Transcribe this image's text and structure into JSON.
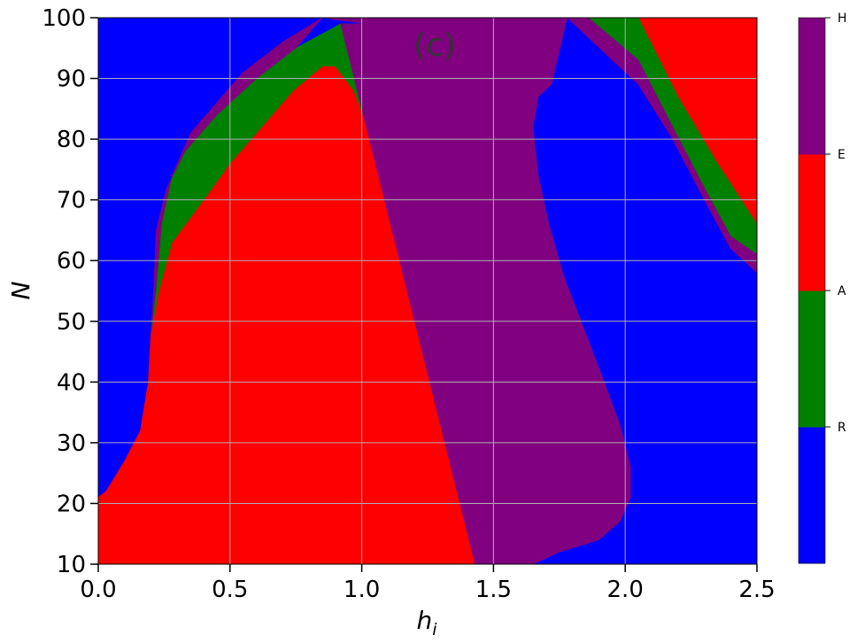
{
  "chart_data": {
    "type": "heatmap",
    "panel_label": "(c)",
    "xlabel": "h",
    "xlabel_sub": "i",
    "ylabel": "N",
    "xlim": [
      0.0,
      2.5
    ],
    "ylim": [
      10,
      100
    ],
    "xticks": [
      "0.0",
      "0.5",
      "1.0",
      "1.5",
      "2.0",
      "2.5"
    ],
    "yticks": [
      "10",
      "20",
      "30",
      "40",
      "50",
      "60",
      "70",
      "80",
      "90",
      "100"
    ],
    "grid": true,
    "colorbar": {
      "categories": [
        "R",
        "A",
        "E",
        "H"
      ],
      "colors": [
        "#0000ff",
        "#008000",
        "#ff0000",
        "#800080"
      ]
    },
    "regions": [
      {
        "category": "E",
        "note": "upper-right corner",
        "boundary": [
          [
            2.05,
            100
          ],
          [
            2.5,
            100
          ],
          [
            2.5,
            66
          ],
          [
            2.35,
            76
          ],
          [
            2.2,
            87
          ],
          [
            2.05,
            100
          ]
        ]
      },
      {
        "category": "A",
        "note": "band around right corner",
        "boundary": [
          [
            1.86,
            100
          ],
          [
            2.05,
            100
          ],
          [
            2.2,
            87
          ],
          [
            2.35,
            76
          ],
          [
            2.5,
            66
          ],
          [
            2.5,
            61
          ],
          [
            2.4,
            64
          ],
          [
            2.3,
            72
          ],
          [
            2.18,
            82
          ],
          [
            2.05,
            93
          ],
          [
            1.86,
            100
          ]
        ]
      },
      {
        "category": "H",
        "note": "outer band around right corner",
        "boundary": [
          [
            1.78,
            100
          ],
          [
            1.86,
            100
          ],
          [
            2.05,
            93
          ],
          [
            2.18,
            82
          ],
          [
            2.3,
            72
          ],
          [
            2.4,
            64
          ],
          [
            2.5,
            61
          ],
          [
            2.5,
            58
          ],
          [
            2.4,
            62
          ],
          [
            2.3,
            70
          ],
          [
            2.18,
            80
          ],
          [
            2.05,
            89
          ],
          [
            1.78,
            100
          ]
        ]
      },
      {
        "category": "E",
        "note": "main lobe",
        "boundary": [
          [
            0.0,
            10
          ],
          [
            1.47,
            10
          ],
          [
            1.52,
            14
          ],
          [
            1.55,
            20
          ],
          [
            1.52,
            30
          ],
          [
            1.42,
            40
          ],
          [
            1.3,
            50
          ],
          [
            1.2,
            60
          ],
          [
            1.11,
            70
          ],
          [
            1.04,
            80
          ],
          [
            0.97,
            88
          ],
          [
            0.9,
            92
          ],
          [
            0.85,
            92
          ],
          [
            0.74,
            88
          ],
          [
            0.62,
            82
          ],
          [
            0.5,
            76
          ],
          [
            0.4,
            70
          ],
          [
            0.28,
            63
          ],
          [
            0.23,
            55
          ],
          [
            0.2,
            48
          ],
          [
            0.19,
            40
          ],
          [
            0.16,
            32
          ],
          [
            0.1,
            27
          ],
          [
            0.03,
            22
          ],
          [
            0.0,
            21
          ]
        ]
      },
      {
        "category": "A",
        "note": "green band",
        "boundary": [
          [
            1.18,
            10
          ],
          [
            1.47,
            10
          ],
          [
            1.52,
            14
          ],
          [
            1.55,
            20
          ],
          [
            1.52,
            30
          ],
          [
            1.42,
            40
          ],
          [
            1.3,
            50
          ],
          [
            1.2,
            60
          ],
          [
            1.11,
            70
          ],
          [
            1.04,
            80
          ],
          [
            0.97,
            88
          ],
          [
            0.9,
            92
          ],
          [
            0.85,
            92
          ],
          [
            0.74,
            88
          ],
          [
            0.62,
            82
          ],
          [
            0.5,
            76
          ],
          [
            0.4,
            70
          ],
          [
            0.28,
            63
          ],
          [
            0.23,
            55
          ],
          [
            0.2,
            48
          ],
          [
            0.21,
            55
          ],
          [
            0.22,
            65
          ],
          [
            0.26,
            72
          ],
          [
            0.33,
            78
          ],
          [
            0.45,
            84
          ],
          [
            0.6,
            90
          ],
          [
            0.75,
            95
          ],
          [
            0.92,
            99
          ],
          [
            1.02,
            99
          ],
          [
            1.1,
            93
          ],
          [
            1.2,
            84
          ],
          [
            1.32,
            74
          ],
          [
            1.45,
            62
          ],
          [
            1.58,
            52
          ],
          [
            1.68,
            43
          ],
          [
            1.76,
            34
          ],
          [
            1.8,
            24
          ],
          [
            1.79,
            19
          ],
          [
            1.75,
            15
          ],
          [
            1.68,
            12
          ],
          [
            1.6,
            11
          ],
          [
            1.5,
            10
          ],
          [
            1.18,
            10
          ]
        ]
      },
      {
        "category": "H",
        "note": "purple band",
        "boundary": [
          [
            1.43,
            10
          ],
          [
            1.65,
            10
          ],
          [
            1.75,
            12
          ],
          [
            1.9,
            14
          ],
          [
            1.98,
            17
          ],
          [
            2.02,
            21
          ],
          [
            2.02,
            26
          ],
          [
            1.98,
            33
          ],
          [
            1.92,
            40
          ],
          [
            1.85,
            48
          ],
          [
            1.77,
            57
          ],
          [
            1.71,
            66
          ],
          [
            1.67,
            74
          ],
          [
            1.65,
            82
          ],
          [
            1.67,
            87
          ],
          [
            1.72,
            89
          ],
          [
            1.78,
            100
          ],
          [
            0.85,
            100
          ],
          [
            0.75,
            95
          ],
          [
            0.6,
            90
          ],
          [
            0.45,
            84
          ],
          [
            0.33,
            78
          ],
          [
            0.26,
            72
          ],
          [
            0.22,
            65
          ],
          [
            0.21,
            55
          ],
          [
            0.2,
            48
          ],
          [
            0.22,
            56
          ],
          [
            0.24,
            66
          ],
          [
            0.28,
            74
          ],
          [
            0.35,
            81
          ],
          [
            0.45,
            86
          ],
          [
            0.55,
            91
          ],
          [
            0.7,
            96
          ],
          [
            0.85,
            100
          ],
          [
            1.02,
            99
          ],
          [
            0.92,
            99
          ]
        ]
      }
    ]
  }
}
